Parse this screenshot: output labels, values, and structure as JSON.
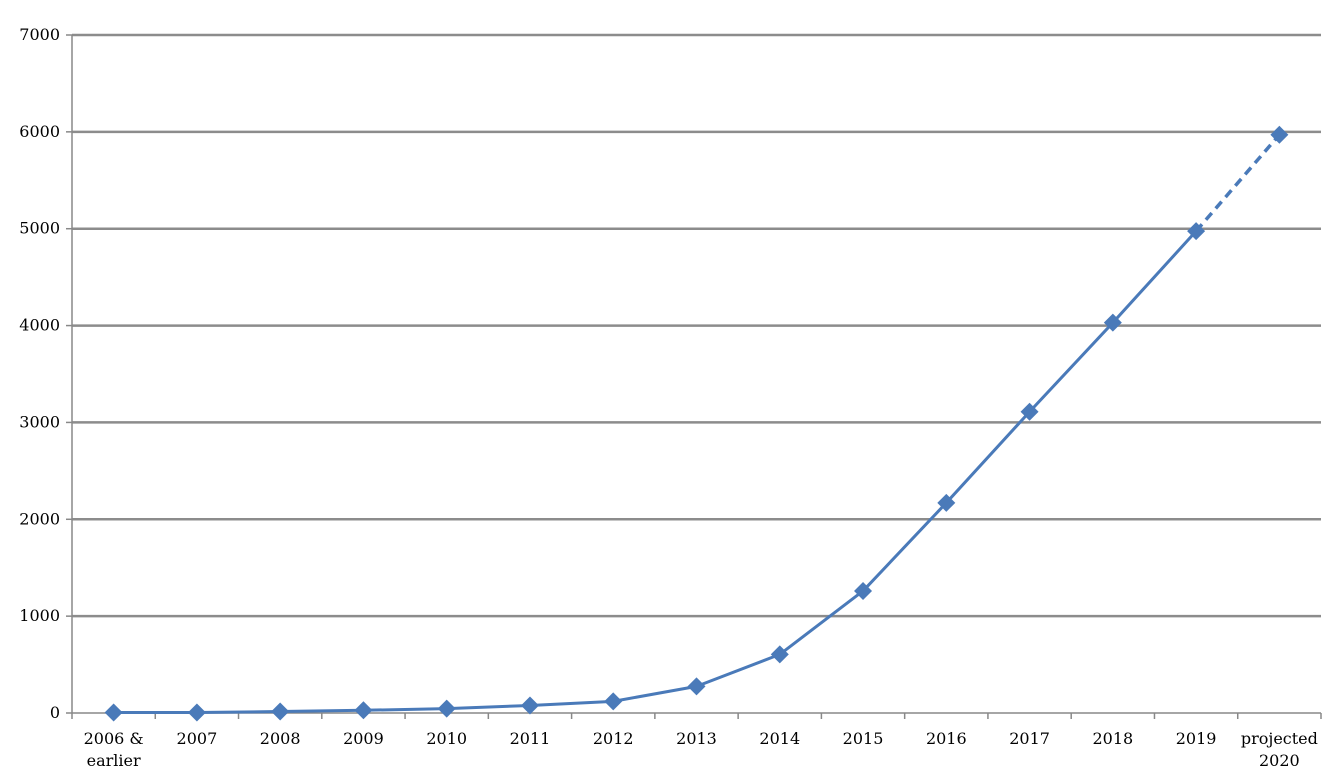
{
  "chart_data": {
    "type": "line",
    "title": "",
    "xlabel": "",
    "ylabel": "",
    "categories": [
      [
        "2006 &",
        "earlier"
      ],
      [
        "2007"
      ],
      [
        "2008"
      ],
      [
        "2009"
      ],
      [
        "2010"
      ],
      [
        "2011"
      ],
      [
        "2012"
      ],
      [
        "2013"
      ],
      [
        "2014"
      ],
      [
        "2015"
      ],
      [
        "2016"
      ],
      [
        "2017"
      ],
      [
        "2018"
      ],
      [
        "2019"
      ],
      [
        "projected",
        "2020"
      ]
    ],
    "series": [
      {
        "values": [
          5,
          5,
          15,
          28,
          45,
          78,
          120,
          275,
          605,
          1260,
          2170,
          3110,
          4030,
          4975,
          5970
        ],
        "projected_from_index": 13,
        "color": "#4a7ab9",
        "marker": "diamond"
      }
    ],
    "yticks": [
      0,
      1000,
      2000,
      3000,
      4000,
      5000,
      6000,
      7000
    ],
    "ylim": [
      0,
      7000
    ],
    "grid": true,
    "gridline_color": "#8c8c8c"
  }
}
